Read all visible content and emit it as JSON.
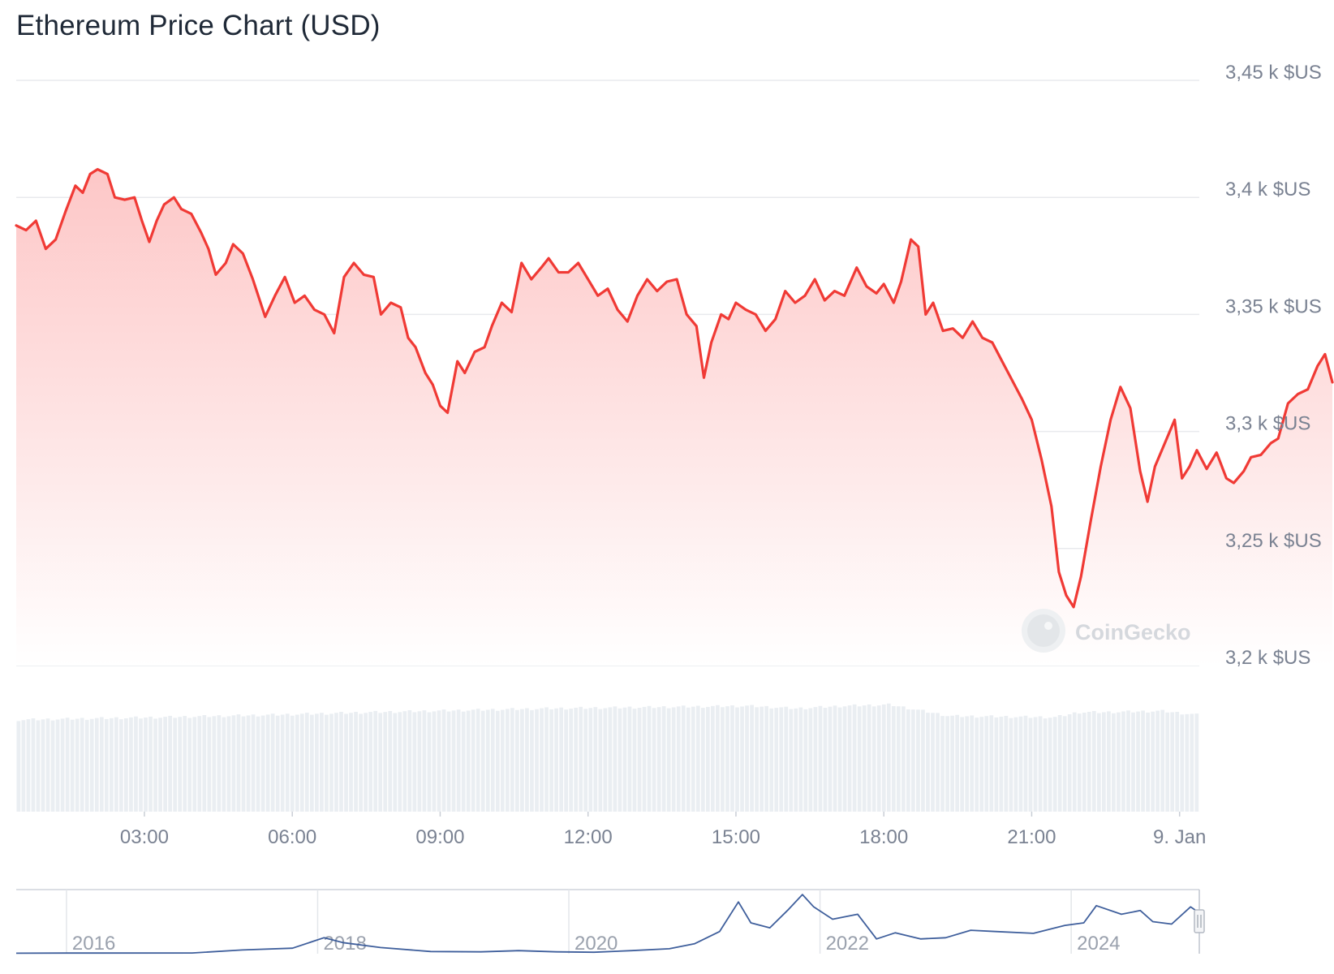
{
  "chart_data": {
    "type": "line",
    "title": "Ethereum Price Chart (USD)",
    "x_axis": {
      "ticks": [
        "03:00",
        "06:00",
        "09:00",
        "12:00",
        "15:00",
        "18:00",
        "21:00",
        "9. Jan"
      ],
      "tick_hours": [
        3,
        6,
        9,
        12,
        15,
        18,
        21,
        24
      ],
      "range_hours": [
        0.4,
        24.4
      ]
    },
    "y_axis": {
      "ticks": [
        3200,
        3250,
        3300,
        3350,
        3400,
        3450
      ],
      "tick_labels": [
        "3,2 k $US",
        "3,25 k $US",
        "3,3 k $US",
        "3,35 k $US",
        "3,4 k $US",
        "3,45 k $US"
      ],
      "range": [
        3200,
        3450
      ]
    },
    "grid": true,
    "legend": "none",
    "series": [
      {
        "color": "#f03a35",
        "fill_color": "#fdd4d4",
        "points": [
          [
            0.4,
            3388
          ],
          [
            0.6,
            3386
          ],
          [
            0.8,
            3390
          ],
          [
            1.0,
            3378
          ],
          [
            1.2,
            3382
          ],
          [
            1.4,
            3394
          ],
          [
            1.6,
            3405
          ],
          [
            1.75,
            3402
          ],
          [
            1.9,
            3410
          ],
          [
            2.05,
            3412
          ],
          [
            2.25,
            3410
          ],
          [
            2.4,
            3400
          ],
          [
            2.6,
            3399
          ],
          [
            2.8,
            3400
          ],
          [
            2.95,
            3390
          ],
          [
            3.1,
            3381
          ],
          [
            3.25,
            3390
          ],
          [
            3.4,
            3397
          ],
          [
            3.6,
            3400
          ],
          [
            3.75,
            3395
          ],
          [
            3.95,
            3393
          ],
          [
            4.15,
            3385
          ],
          [
            4.3,
            3378
          ],
          [
            4.45,
            3367
          ],
          [
            4.65,
            3372
          ],
          [
            4.8,
            3380
          ],
          [
            5.0,
            3376
          ],
          [
            5.2,
            3365
          ],
          [
            5.45,
            3349
          ],
          [
            5.65,
            3358
          ],
          [
            5.85,
            3366
          ],
          [
            6.05,
            3355
          ],
          [
            6.25,
            3358
          ],
          [
            6.45,
            3352
          ],
          [
            6.65,
            3350
          ],
          [
            6.85,
            3342
          ],
          [
            7.05,
            3366
          ],
          [
            7.25,
            3372
          ],
          [
            7.45,
            3367
          ],
          [
            7.65,
            3366
          ],
          [
            7.8,
            3350
          ],
          [
            8.0,
            3355
          ],
          [
            8.2,
            3353
          ],
          [
            8.35,
            3340
          ],
          [
            8.5,
            3336
          ],
          [
            8.7,
            3325
          ],
          [
            8.85,
            3320
          ],
          [
            9.0,
            3311
          ],
          [
            9.15,
            3308
          ],
          [
            9.35,
            3330
          ],
          [
            9.5,
            3325
          ],
          [
            9.7,
            3334
          ],
          [
            9.9,
            3336
          ],
          [
            10.05,
            3345
          ],
          [
            10.25,
            3355
          ],
          [
            10.45,
            3351
          ],
          [
            10.65,
            3372
          ],
          [
            10.85,
            3365
          ],
          [
            11.05,
            3370
          ],
          [
            11.2,
            3374
          ],
          [
            11.4,
            3368
          ],
          [
            11.6,
            3368
          ],
          [
            11.8,
            3372
          ],
          [
            12.0,
            3365
          ],
          [
            12.2,
            3358
          ],
          [
            12.4,
            3361
          ],
          [
            12.6,
            3352
          ],
          [
            12.8,
            3347
          ],
          [
            13.0,
            3358
          ],
          [
            13.2,
            3365
          ],
          [
            13.4,
            3360
          ],
          [
            13.6,
            3364
          ],
          [
            13.8,
            3365
          ],
          [
            14.0,
            3350
          ],
          [
            14.2,
            3345
          ],
          [
            14.35,
            3323
          ],
          [
            14.5,
            3338
          ],
          [
            14.7,
            3350
          ],
          [
            14.85,
            3348
          ],
          [
            15.0,
            3355
          ],
          [
            15.2,
            3352
          ],
          [
            15.4,
            3350
          ],
          [
            15.6,
            3343
          ],
          [
            15.8,
            3348
          ],
          [
            16.0,
            3360
          ],
          [
            16.2,
            3355
          ],
          [
            16.4,
            3358
          ],
          [
            16.6,
            3365
          ],
          [
            16.8,
            3356
          ],
          [
            17.0,
            3360
          ],
          [
            17.2,
            3358
          ],
          [
            17.45,
            3370
          ],
          [
            17.65,
            3362
          ],
          [
            17.85,
            3359
          ],
          [
            18.0,
            3363
          ],
          [
            18.2,
            3355
          ],
          [
            18.35,
            3364
          ],
          [
            18.55,
            3382
          ],
          [
            18.7,
            3379
          ],
          [
            18.85,
            3350
          ],
          [
            19.0,
            3355
          ],
          [
            19.2,
            3343
          ],
          [
            19.4,
            3344
          ],
          [
            19.6,
            3340
          ],
          [
            19.8,
            3347
          ],
          [
            20.0,
            3340
          ],
          [
            20.2,
            3338
          ],
          [
            20.4,
            3330
          ],
          [
            20.6,
            3322
          ],
          [
            20.8,
            3314
          ],
          [
            21.0,
            3305
          ],
          [
            21.2,
            3288
          ],
          [
            21.4,
            3268
          ],
          [
            21.55,
            3240
          ],
          [
            21.7,
            3230
          ],
          [
            21.85,
            3225
          ],
          [
            22.0,
            3238
          ],
          [
            22.2,
            3262
          ],
          [
            22.4,
            3285
          ],
          [
            22.6,
            3305
          ],
          [
            22.8,
            3319
          ],
          [
            23.0,
            3310
          ],
          [
            23.2,
            3283
          ],
          [
            23.35,
            3270
          ],
          [
            23.5,
            3285
          ],
          [
            23.7,
            3295
          ],
          [
            23.9,
            3305
          ],
          [
            24.05,
            3280
          ],
          [
            24.2,
            3285
          ],
          [
            24.35,
            3292
          ],
          [
            24.55,
            3284
          ],
          [
            24.75,
            3291
          ],
          [
            24.95,
            3280
          ],
          [
            25.1,
            3278
          ],
          [
            25.3,
            3283
          ],
          [
            25.45,
            3289
          ],
          [
            25.65,
            3290
          ],
          [
            25.85,
            3295
          ],
          [
            26.0,
            3297
          ],
          [
            26.2,
            3312
          ],
          [
            26.4,
            3316
          ],
          [
            26.6,
            3318
          ],
          [
            26.8,
            3328
          ],
          [
            26.95,
            3333
          ],
          [
            27.1,
            3321
          ]
        ]
      }
    ],
    "volume": {
      "bar_count": 242,
      "profile": [
        [
          0,
          0.72
        ],
        [
          0.12,
          0.74
        ],
        [
          0.22,
          0.76
        ],
        [
          0.3,
          0.78
        ],
        [
          0.45,
          0.81
        ],
        [
          0.62,
          0.83
        ],
        [
          0.66,
          0.81
        ],
        [
          0.7,
          0.83
        ],
        [
          0.74,
          0.84
        ],
        [
          0.79,
          0.75
        ],
        [
          0.88,
          0.74
        ],
        [
          0.9,
          0.78
        ],
        [
          0.92,
          0.78
        ],
        [
          0.97,
          0.79
        ],
        [
          1.0,
          0.76
        ]
      ]
    },
    "navigator": {
      "year_labels": [
        "2016",
        "2018",
        "2020",
        "2022",
        "2024"
      ],
      "year_positions": [
        2016,
        2018,
        2020,
        2022,
        2024
      ],
      "range_years": [
        2015.6,
        2025.02
      ],
      "series": [
        [
          2015.6,
          40
        ],
        [
          2016.0,
          50
        ],
        [
          2017.0,
          60
        ],
        [
          2017.4,
          300
        ],
        [
          2017.8,
          450
        ],
        [
          2018.05,
          1300
        ],
        [
          2018.2,
          900
        ],
        [
          2018.5,
          500
        ],
        [
          2018.9,
          180
        ],
        [
          2019.3,
          150
        ],
        [
          2019.6,
          250
        ],
        [
          2019.9,
          150
        ],
        [
          2020.2,
          120
        ],
        [
          2020.5,
          250
        ],
        [
          2020.8,
          400
        ],
        [
          2021.0,
          800
        ],
        [
          2021.2,
          1800
        ],
        [
          2021.35,
          4200
        ],
        [
          2021.45,
          2500
        ],
        [
          2021.6,
          2100
        ],
        [
          2021.75,
          3600
        ],
        [
          2021.86,
          4800
        ],
        [
          2021.95,
          3800
        ],
        [
          2022.1,
          2800
        ],
        [
          2022.3,
          3200
        ],
        [
          2022.45,
          1200
        ],
        [
          2022.6,
          1700
        ],
        [
          2022.8,
          1200
        ],
        [
          2023.0,
          1300
        ],
        [
          2023.2,
          1900
        ],
        [
          2023.4,
          1800
        ],
        [
          2023.7,
          1650
        ],
        [
          2023.95,
          2300
        ],
        [
          2024.1,
          2500
        ],
        [
          2024.2,
          3900
        ],
        [
          2024.4,
          3200
        ],
        [
          2024.55,
          3500
        ],
        [
          2024.65,
          2600
        ],
        [
          2024.8,
          2400
        ],
        [
          2024.95,
          3800
        ],
        [
          2025.02,
          3320
        ]
      ],
      "y_range": [
        0,
        5200
      ]
    },
    "colors": {
      "line": "#f03a35",
      "area_top": "#fdc7c7",
      "area_bottom": "#ffffff",
      "grid": "#e8eaed",
      "volume": "#eaeef2",
      "navigator_line": "#3f5f9c",
      "axis_text": "#7a8292"
    },
    "watermark": "CoinGecko"
  }
}
